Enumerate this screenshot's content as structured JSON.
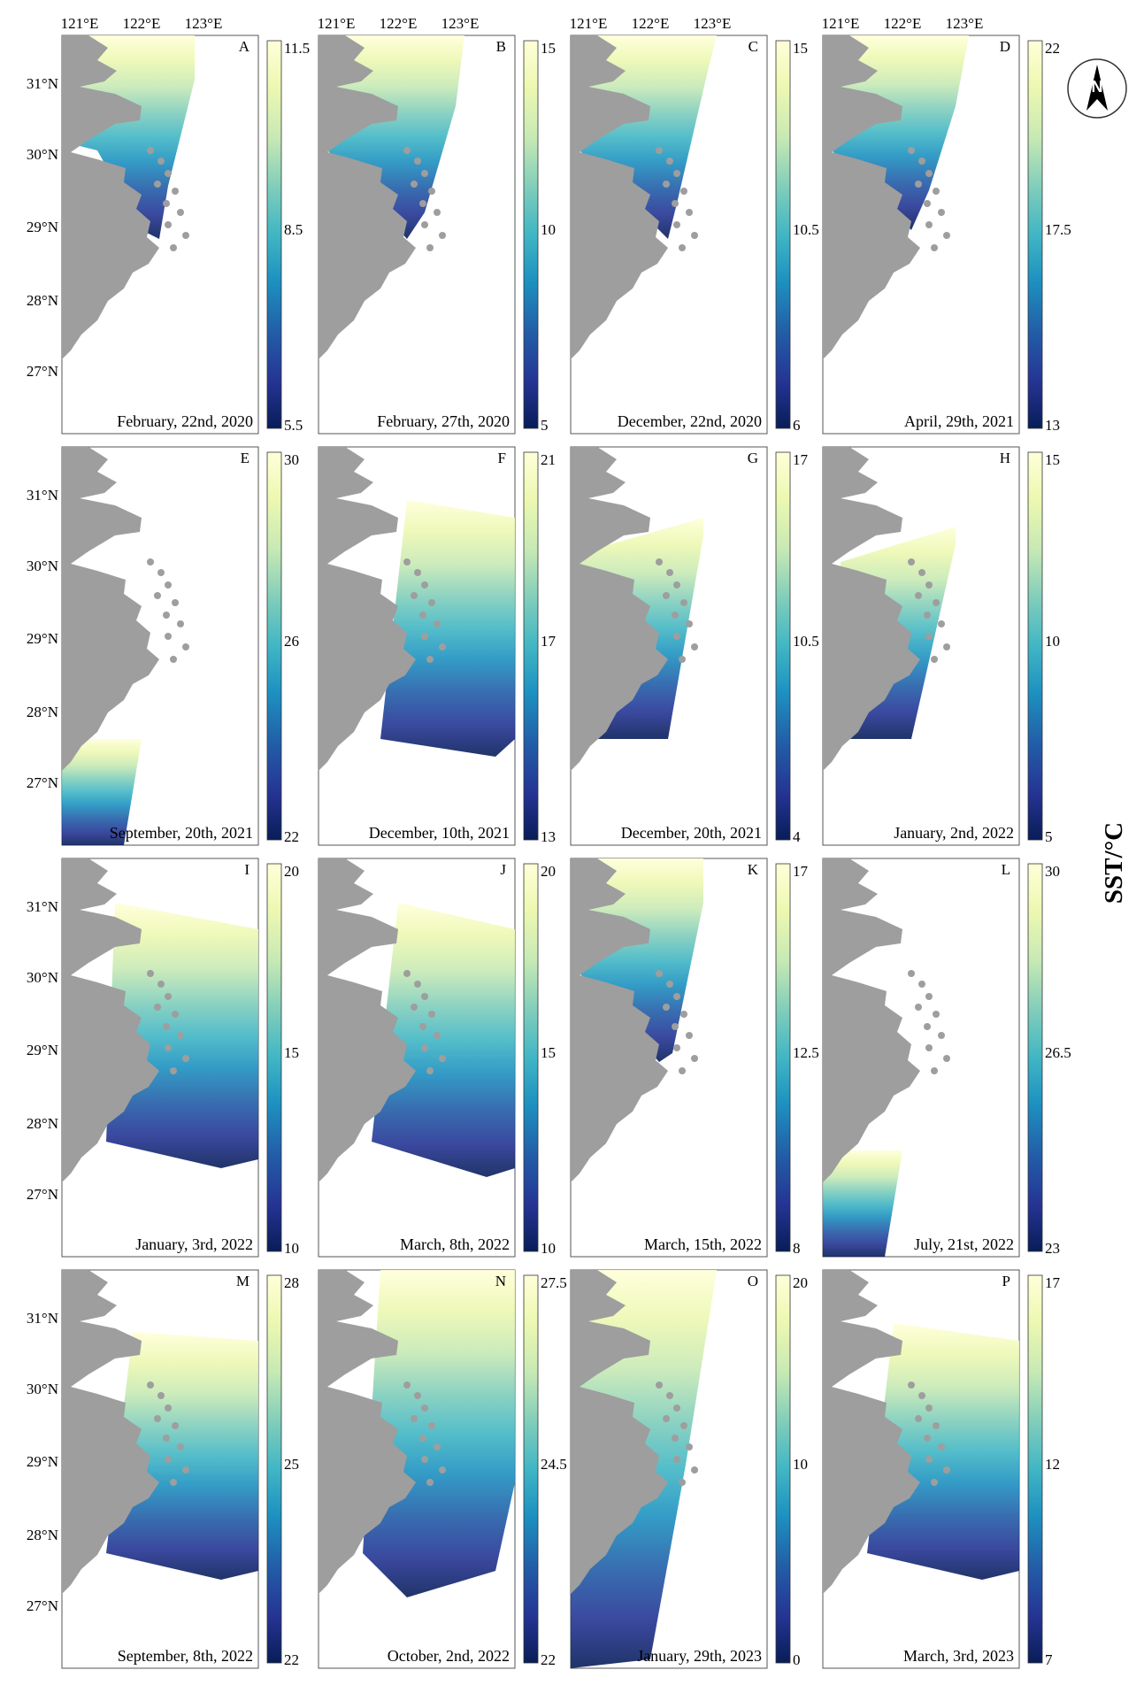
{
  "north_arrow": {
    "letter": "N"
  },
  "colorbar_title": "SST/°C",
  "lon_labels": [
    "121°E",
    "122°E",
    "123°E"
  ],
  "lat_labels": [
    "31°N",
    "30°N",
    "29°N",
    "28°N",
    "27°N"
  ],
  "panels": [
    {
      "letter": "A",
      "date": "February, 22nd, 2020",
      "cb_labels": [
        "11.5",
        "8.5",
        "5.5"
      ],
      "cmap": "ygb",
      "lon_ticks": true,
      "lat_ticks": true
    },
    {
      "letter": "B",
      "date": "February, 27th, 2020",
      "cb_labels": [
        "15",
        "10",
        "5"
      ],
      "cmap": "ygb",
      "lon_ticks": true,
      "lat_ticks": false
    },
    {
      "letter": "C",
      "date": "December, 22nd, 2020",
      "cb_labels": [
        "15",
        "10.5",
        "6"
      ],
      "cmap": "ygb",
      "lon_ticks": true,
      "lat_ticks": false
    },
    {
      "letter": "D",
      "date": "April, 29th, 2021",
      "cb_labels": [
        "22",
        "17.5",
        "13"
      ],
      "cmap": "ygb",
      "lon_ticks": true,
      "lat_ticks": false
    },
    {
      "letter": "E",
      "date": "September, 20th, 2021",
      "cb_labels": [
        "30",
        "26",
        "22"
      ],
      "cmap": "ygb",
      "lon_ticks": false,
      "lat_ticks": true
    },
    {
      "letter": "F",
      "date": "December, 10th, 2021",
      "cb_labels": [
        "21",
        "17",
        "13"
      ],
      "cmap": "ygb",
      "lon_ticks": false,
      "lat_ticks": false
    },
    {
      "letter": "G",
      "date": "December, 20th, 2021",
      "cb_labels": [
        "17",
        "10.5",
        "4"
      ],
      "cmap": "ygb",
      "lon_ticks": false,
      "lat_ticks": false
    },
    {
      "letter": "H",
      "date": "January, 2nd, 2022",
      "cb_labels": [
        "15",
        "10",
        "5"
      ],
      "cmap": "ygb",
      "lon_ticks": false,
      "lat_ticks": false
    },
    {
      "letter": "I",
      "date": "January, 3rd, 2022",
      "cb_labels": [
        "20",
        "15",
        "10"
      ],
      "cmap": "ygb",
      "lon_ticks": false,
      "lat_ticks": true
    },
    {
      "letter": "J",
      "date": "March, 8th, 2022",
      "cb_labels": [
        "20",
        "15",
        "10"
      ],
      "cmap": "ygb",
      "lon_ticks": false,
      "lat_ticks": false
    },
    {
      "letter": "K",
      "date": "March, 15th, 2022",
      "cb_labels": [
        "17",
        "12.5",
        "8"
      ],
      "cmap": "ygb",
      "lon_ticks": false,
      "lat_ticks": false
    },
    {
      "letter": "L",
      "date": "July, 21st, 2022",
      "cb_labels": [
        "30",
        "26.5",
        "23"
      ],
      "cmap": "ygb",
      "lon_ticks": false,
      "lat_ticks": false
    },
    {
      "letter": "M",
      "date": "September, 8th, 2022",
      "cb_labels": [
        "28",
        "25",
        "22"
      ],
      "cmap": "ygb",
      "lon_ticks": false,
      "lat_ticks": true
    },
    {
      "letter": "N",
      "date": "October, 2nd, 2022",
      "cb_labels": [
        "27.5",
        "24.5",
        "22"
      ],
      "cmap": "ygb",
      "lon_ticks": false,
      "lat_ticks": false
    },
    {
      "letter": "O",
      "date": "January, 29th, 2023",
      "cb_labels": [
        "20",
        "10",
        "0"
      ],
      "cmap": "ygb",
      "lon_ticks": false,
      "lat_ticks": false
    },
    {
      "letter": "P",
      "date": "March, 3rd, 2023",
      "cb_labels": [
        "17",
        "12",
        "7"
      ],
      "cmap": "ygb",
      "lon_ticks": false,
      "lat_ticks": false
    }
  ],
  "colors": {
    "land": "#9e9e9e",
    "frame": "#555555",
    "cmap_ygb": [
      "#ffffd9",
      "#edf8b1",
      "#c7e9b4",
      "#7fcdbb",
      "#41b6c4",
      "#1d91c0",
      "#225ea8",
      "#253494",
      "#081d58"
    ]
  }
}
